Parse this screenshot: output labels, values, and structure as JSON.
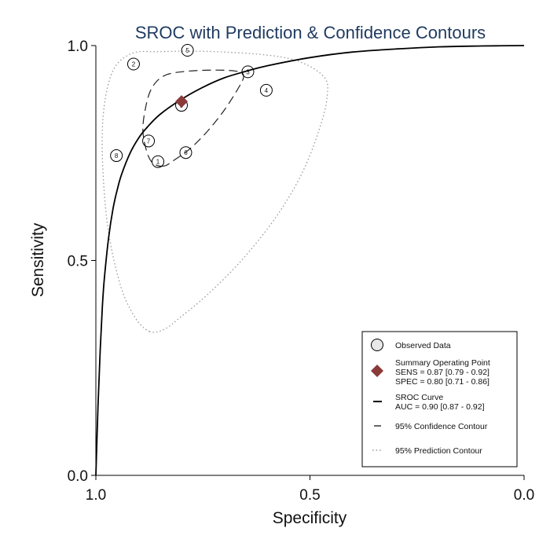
{
  "chart_data": {
    "type": "scatter",
    "title": "SROC with Prediction & Confidence Contours",
    "xlabel": "Specificity",
    "ylabel": "Sensitivity",
    "xlim": [
      1.0,
      0.0
    ],
    "ylim": [
      0.0,
      1.0
    ],
    "x_reversed": true,
    "xticks": [
      "1.0",
      "0.5",
      "0.0"
    ],
    "yticks": [
      "0.0",
      "0.5",
      "1.0"
    ],
    "grid": false,
    "legend_position": "bottom-right",
    "studies": [
      {
        "label": "1",
        "spec": 0.855,
        "sens": 0.73
      },
      {
        "label": "2",
        "spec": 0.912,
        "sens": 0.957
      },
      {
        "label": "3",
        "spec": 0.645,
        "sens": 0.939
      },
      {
        "label": "4",
        "spec": 0.602,
        "sens": 0.896
      },
      {
        "label": "5",
        "spec": 0.786,
        "sens": 0.989
      },
      {
        "label": "6",
        "spec": 0.79,
        "sens": 0.751
      },
      {
        "label": "7",
        "spec": 0.877,
        "sens": 0.778
      },
      {
        "label": "8",
        "spec": 0.952,
        "sens": 0.744
      },
      {
        "label": "9",
        "spec": 0.8,
        "sens": 0.861
      }
    ],
    "summary_point": {
      "spec": 0.8,
      "sens": 0.87,
      "color": "#8b3a3a"
    },
    "sroc_curve": {
      "points": [
        [
          1.0,
          0.0
        ],
        [
          0.995,
          0.16
        ],
        [
          0.99,
          0.29
        ],
        [
          0.985,
          0.39
        ],
        [
          0.98,
          0.46
        ],
        [
          0.97,
          0.555
        ],
        [
          0.96,
          0.62
        ],
        [
          0.95,
          0.665
        ],
        [
          0.94,
          0.7
        ],
        [
          0.92,
          0.75
        ],
        [
          0.9,
          0.785
        ],
        [
          0.88,
          0.81
        ],
        [
          0.85,
          0.84
        ],
        [
          0.8,
          0.875
        ],
        [
          0.75,
          0.903
        ],
        [
          0.7,
          0.925
        ],
        [
          0.65,
          0.94
        ],
        [
          0.6,
          0.953
        ],
        [
          0.5,
          0.972
        ],
        [
          0.4,
          0.985
        ],
        [
          0.3,
          0.992
        ],
        [
          0.2,
          0.997
        ],
        [
          0.1,
          0.999
        ],
        [
          0.0,
          1.0
        ]
      ]
    },
    "confidence_contour": {
      "points": [
        [
          0.84,
          0.72
        ],
        [
          0.865,
          0.725
        ],
        [
          0.88,
          0.75
        ],
        [
          0.89,
          0.8
        ],
        [
          0.885,
          0.85
        ],
        [
          0.87,
          0.9
        ],
        [
          0.84,
          0.93
        ],
        [
          0.79,
          0.94
        ],
        [
          0.72,
          0.943
        ],
        [
          0.67,
          0.94
        ],
        [
          0.655,
          0.93
        ],
        [
          0.665,
          0.905
        ],
        [
          0.7,
          0.85
        ],
        [
          0.74,
          0.8
        ],
        [
          0.78,
          0.76
        ],
        [
          0.815,
          0.735
        ]
      ]
    },
    "prediction_contour": {
      "points": [
        [
          0.875,
          0.335
        ],
        [
          0.84,
          0.34
        ],
        [
          0.8,
          0.37
        ],
        [
          0.74,
          0.42
        ],
        [
          0.66,
          0.5
        ],
        [
          0.58,
          0.6
        ],
        [
          0.52,
          0.7
        ],
        [
          0.48,
          0.8
        ],
        [
          0.46,
          0.88
        ],
        [
          0.47,
          0.93
        ],
        [
          0.55,
          0.97
        ],
        [
          0.7,
          0.985
        ],
        [
          0.85,
          0.986
        ],
        [
          0.92,
          0.98
        ],
        [
          0.965,
          0.93
        ],
        [
          0.985,
          0.8
        ],
        [
          0.975,
          0.6
        ],
        [
          0.945,
          0.45
        ],
        [
          0.91,
          0.37
        ]
      ]
    },
    "legend": [
      {
        "key": "observed",
        "text": [
          "Observed Data"
        ]
      },
      {
        "key": "summary",
        "text": [
          "Summary Operating Point",
          "SENS = 0.87 [0.79 - 0.92]",
          "SPEC = 0.80 [0.71 - 0.86]"
        ]
      },
      {
        "key": "sroc",
        "text": [
          "SROC Curve",
          "AUC = 0.90 [0.87 - 0.92]"
        ]
      },
      {
        "key": "confidence",
        "text": [
          "95% Confidence Contour"
        ]
      },
      {
        "key": "prediction",
        "text": [
          "95% Prediction Contour"
        ]
      }
    ]
  }
}
